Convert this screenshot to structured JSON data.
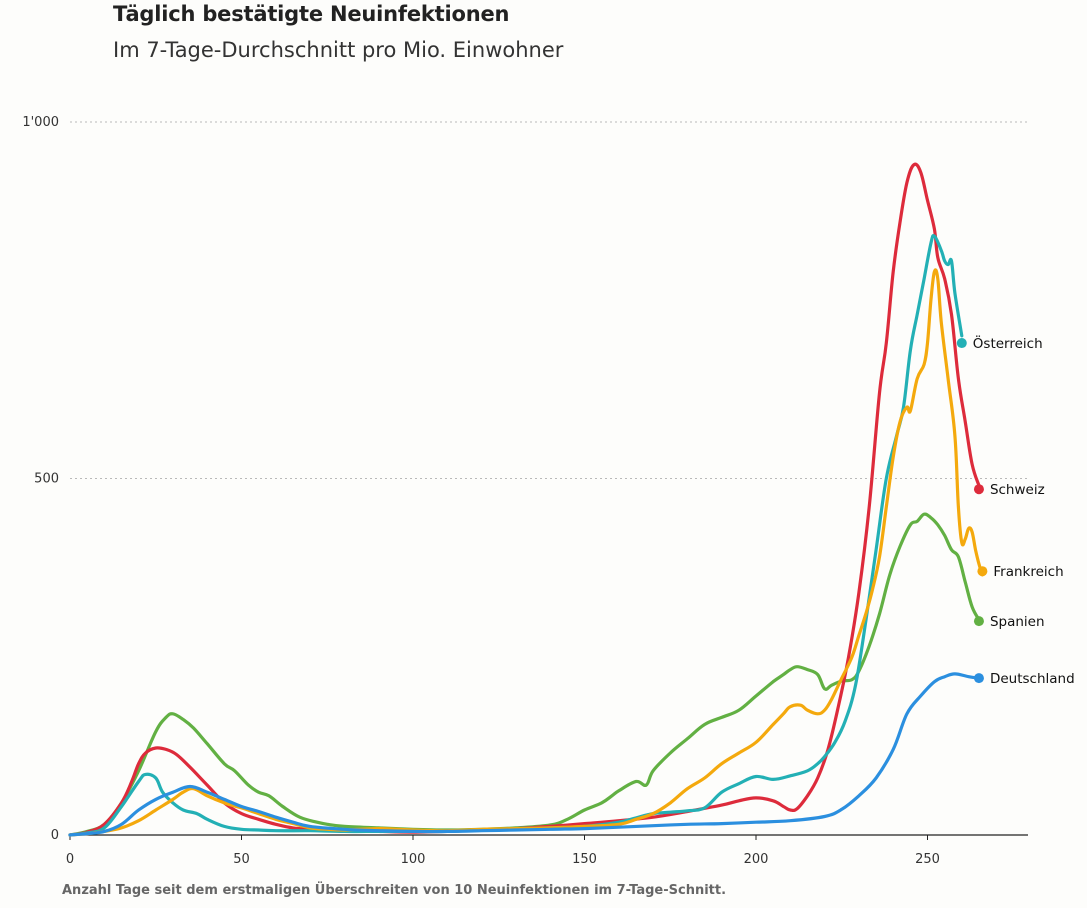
{
  "header": {
    "title": "Täglich bestätigte Neuinfektionen",
    "subtitle": "Im 7-Tage-Durchschnitt pro Mio. Einwohner"
  },
  "footnote": "Anzahl Tage seit dem erstmaligen Überschreiten von 10 Neuinfektionen im 7-Tage-Schnitt.",
  "chart_data": {
    "type": "line",
    "title": "Täglich bestätigte Neuinfektionen",
    "subtitle": "Im 7-Tage-Durchschnitt pro Mio. Einwohner",
    "xlabel": "Anzahl Tage seit dem erstmaligen Überschreiten von 10 Neuinfektionen im 7-Tage-Schnitt.",
    "ylabel": "",
    "xlim": [
      0,
      280
    ],
    "ylim": [
      0,
      1000
    ],
    "x_ticks": [
      0,
      50,
      100,
      150,
      200,
      250
    ],
    "x_tick_labels": [
      "0",
      "50",
      "100",
      "150",
      "200",
      "250"
    ],
    "y_ticks": [
      0,
      500,
      1000
    ],
    "y_tick_labels": [
      "0",
      "500",
      "1'000"
    ],
    "grid": "horizontal dotted",
    "legend": "inline labels at line ends",
    "series": [
      {
        "name": "Spanien",
        "color": "#62b043",
        "points": [
          [
            0,
            0
          ],
          [
            5,
            5
          ],
          [
            10,
            15
          ],
          [
            15,
            45
          ],
          [
            20,
            90
          ],
          [
            25,
            145
          ],
          [
            28,
            165
          ],
          [
            30,
            170
          ],
          [
            33,
            162
          ],
          [
            36,
            150
          ],
          [
            40,
            128
          ],
          [
            45,
            100
          ],
          [
            48,
            90
          ],
          [
            52,
            70
          ],
          [
            55,
            60
          ],
          [
            58,
            55
          ],
          [
            62,
            40
          ],
          [
            67,
            25
          ],
          [
            72,
            18
          ],
          [
            75,
            15
          ],
          [
            80,
            12
          ],
          [
            90,
            10
          ],
          [
            100,
            8
          ],
          [
            110,
            7
          ],
          [
            120,
            8
          ],
          [
            130,
            10
          ],
          [
            140,
            14
          ],
          [
            145,
            22
          ],
          [
            150,
            35
          ],
          [
            155,
            45
          ],
          [
            158,
            55
          ],
          [
            160,
            62
          ],
          [
            165,
            75
          ],
          [
            168,
            70
          ],
          [
            170,
            90
          ],
          [
            175,
            115
          ],
          [
            180,
            135
          ],
          [
            185,
            155
          ],
          [
            190,
            165
          ],
          [
            195,
            175
          ],
          [
            200,
            195
          ],
          [
            205,
            215
          ],
          [
            208,
            225
          ],
          [
            210,
            232
          ],
          [
            212,
            236
          ],
          [
            215,
            232
          ],
          [
            218,
            225
          ],
          [
            220,
            205
          ],
          [
            222,
            210
          ],
          [
            225,
            216
          ],
          [
            228,
            218
          ],
          [
            230,
            230
          ],
          [
            233,
            265
          ],
          [
            236,
            310
          ],
          [
            239,
            365
          ],
          [
            242,
            405
          ],
          [
            245,
            435
          ],
          [
            247,
            440
          ],
          [
            249,
            450
          ],
          [
            251,
            445
          ],
          [
            253,
            435
          ],
          [
            255,
            420
          ],
          [
            257,
            400
          ],
          [
            259,
            390
          ],
          [
            261,
            355
          ],
          [
            263,
            320
          ],
          [
            265,
            302
          ]
        ],
        "end_value": 300
      },
      {
        "name": "Schweiz",
        "color": "#dd2b3b",
        "points": [
          [
            0,
            0
          ],
          [
            5,
            4
          ],
          [
            10,
            15
          ],
          [
            15,
            45
          ],
          [
            18,
            75
          ],
          [
            20,
            100
          ],
          [
            22,
            115
          ],
          [
            25,
            122
          ],
          [
            28,
            120
          ],
          [
            31,
            113
          ],
          [
            35,
            95
          ],
          [
            40,
            70
          ],
          [
            45,
            45
          ],
          [
            50,
            30
          ],
          [
            55,
            22
          ],
          [
            60,
            15
          ],
          [
            65,
            10
          ],
          [
            70,
            8
          ],
          [
            80,
            6
          ],
          [
            90,
            5
          ],
          [
            100,
            4
          ],
          [
            110,
            5
          ],
          [
            120,
            7
          ],
          [
            130,
            9
          ],
          [
            140,
            12
          ],
          [
            150,
            16
          ],
          [
            160,
            20
          ],
          [
            170,
            25
          ],
          [
            180,
            33
          ],
          [
            190,
            42
          ],
          [
            195,
            48
          ],
          [
            200,
            52
          ],
          [
            205,
            48
          ],
          [
            208,
            40
          ],
          [
            210,
            35
          ],
          [
            212,
            37
          ],
          [
            215,
            55
          ],
          [
            218,
            80
          ],
          [
            221,
            120
          ],
          [
            224,
            180
          ],
          [
            227,
            250
          ],
          [
            230,
            340
          ],
          [
            233,
            460
          ],
          [
            236,
            620
          ],
          [
            238,
            690
          ],
          [
            240,
            790
          ],
          [
            242,
            860
          ],
          [
            244,
            915
          ],
          [
            246,
            940
          ],
          [
            248,
            930
          ],
          [
            250,
            890
          ],
          [
            252,
            850
          ],
          [
            253,
            810
          ],
          [
            255,
            780
          ],
          [
            257,
            730
          ],
          [
            259,
            640
          ],
          [
            261,
            580
          ],
          [
            263,
            520
          ],
          [
            265,
            490
          ]
        ],
        "end_value": 485
      },
      {
        "name": "Österreich",
        "color": "#23b0b5",
        "points": [
          [
            0,
            0
          ],
          [
            5,
            3
          ],
          [
            10,
            10
          ],
          [
            15,
            40
          ],
          [
            20,
            75
          ],
          [
            22,
            85
          ],
          [
            25,
            80
          ],
          [
            27,
            60
          ],
          [
            30,
            45
          ],
          [
            33,
            35
          ],
          [
            37,
            30
          ],
          [
            40,
            22
          ],
          [
            45,
            12
          ],
          [
            50,
            8
          ],
          [
            55,
            7
          ],
          [
            60,
            6
          ],
          [
            70,
            6
          ],
          [
            80,
            5
          ],
          [
            90,
            5
          ],
          [
            100,
            5
          ],
          [
            110,
            5
          ],
          [
            120,
            7
          ],
          [
            130,
            9
          ],
          [
            140,
            10
          ],
          [
            150,
            12
          ],
          [
            160,
            18
          ],
          [
            165,
            24
          ],
          [
            170,
            30
          ],
          [
            175,
            32
          ],
          [
            180,
            34
          ],
          [
            185,
            38
          ],
          [
            190,
            60
          ],
          [
            195,
            72
          ],
          [
            200,
            82
          ],
          [
            205,
            78
          ],
          [
            210,
            83
          ],
          [
            215,
            90
          ],
          [
            218,
            100
          ],
          [
            220,
            110
          ],
          [
            223,
            130
          ],
          [
            226,
            160
          ],
          [
            229,
            210
          ],
          [
            232,
            300
          ],
          [
            235,
            400
          ],
          [
            238,
            500
          ],
          [
            241,
            560
          ],
          [
            243,
            600
          ],
          [
            245,
            680
          ],
          [
            247,
            730
          ],
          [
            249,
            780
          ],
          [
            251,
            830
          ],
          [
            252,
            840
          ],
          [
            254,
            820
          ],
          [
            255,
            805
          ],
          [
            256,
            800
          ],
          [
            257,
            805
          ],
          [
            258,
            760
          ],
          [
            260,
            700
          ]
        ],
        "end_value": 690
      },
      {
        "name": "Frankreich",
        "color": "#f4a90d",
        "points": [
          [
            0,
            0
          ],
          [
            5,
            2
          ],
          [
            10,
            5
          ],
          [
            15,
            10
          ],
          [
            20,
            20
          ],
          [
            25,
            35
          ],
          [
            30,
            50
          ],
          [
            33,
            60
          ],
          [
            36,
            65
          ],
          [
            40,
            55
          ],
          [
            45,
            45
          ],
          [
            50,
            38
          ],
          [
            55,
            30
          ],
          [
            60,
            22
          ],
          [
            65,
            16
          ],
          [
            70,
            10
          ],
          [
            75,
            8
          ],
          [
            80,
            7
          ],
          [
            90,
            9
          ],
          [
            100,
            7
          ],
          [
            110,
            6
          ],
          [
            120,
            8
          ],
          [
            130,
            9
          ],
          [
            140,
            10
          ],
          [
            150,
            12
          ],
          [
            160,
            15
          ],
          [
            165,
            22
          ],
          [
            170,
            30
          ],
          [
            175,
            45
          ],
          [
            180,
            65
          ],
          [
            185,
            80
          ],
          [
            190,
            100
          ],
          [
            195,
            115
          ],
          [
            200,
            130
          ],
          [
            205,
            155
          ],
          [
            208,
            170
          ],
          [
            210,
            180
          ],
          [
            213,
            182
          ],
          [
            215,
            175
          ],
          [
            218,
            170
          ],
          [
            220,
            175
          ],
          [
            222,
            190
          ],
          [
            225,
            220
          ],
          [
            228,
            250
          ],
          [
            230,
            280
          ],
          [
            232,
            310
          ],
          [
            234,
            345
          ],
          [
            236,
            390
          ],
          [
            238,
            460
          ],
          [
            240,
            530
          ],
          [
            242,
            580
          ],
          [
            244,
            600
          ],
          [
            245,
            595
          ],
          [
            247,
            640
          ],
          [
            249,
            660
          ],
          [
            250,
            690
          ],
          [
            251,
            750
          ],
          [
            252,
            790
          ],
          [
            253,
            780
          ],
          [
            254,
            720
          ],
          [
            256,
            640
          ],
          [
            258,
            560
          ],
          [
            259,
            460
          ],
          [
            260,
            410
          ],
          [
            261,
            415
          ],
          [
            262,
            430
          ],
          [
            263,
            425
          ],
          [
            264,
            400
          ],
          [
            265,
            380
          ],
          [
            266,
            365
          ]
        ],
        "end_value": 370
      },
      {
        "name": "Deutschland",
        "color": "#2b8fdf",
        "points": [
          [
            0,
            0
          ],
          [
            5,
            2
          ],
          [
            10,
            5
          ],
          [
            15,
            15
          ],
          [
            20,
            35
          ],
          [
            25,
            50
          ],
          [
            30,
            60
          ],
          [
            35,
            68
          ],
          [
            40,
            60
          ],
          [
            45,
            50
          ],
          [
            50,
            40
          ],
          [
            55,
            33
          ],
          [
            60,
            25
          ],
          [
            65,
            18
          ],
          [
            70,
            12
          ],
          [
            80,
            8
          ],
          [
            90,
            6
          ],
          [
            100,
            5
          ],
          [
            110,
            5
          ],
          [
            120,
            6
          ],
          [
            130,
            7
          ],
          [
            140,
            8
          ],
          [
            150,
            9
          ],
          [
            160,
            11
          ],
          [
            170,
            13
          ],
          [
            180,
            15
          ],
          [
            190,
            16
          ],
          [
            200,
            18
          ],
          [
            210,
            20
          ],
          [
            220,
            26
          ],
          [
            225,
            36
          ],
          [
            230,
            55
          ],
          [
            235,
            80
          ],
          [
            240,
            120
          ],
          [
            244,
            170
          ],
          [
            248,
            195
          ],
          [
            252,
            215
          ],
          [
            255,
            222
          ],
          [
            258,
            226
          ],
          [
            262,
            222
          ],
          [
            265,
            220
          ]
        ],
        "end_value": 220
      }
    ]
  }
}
